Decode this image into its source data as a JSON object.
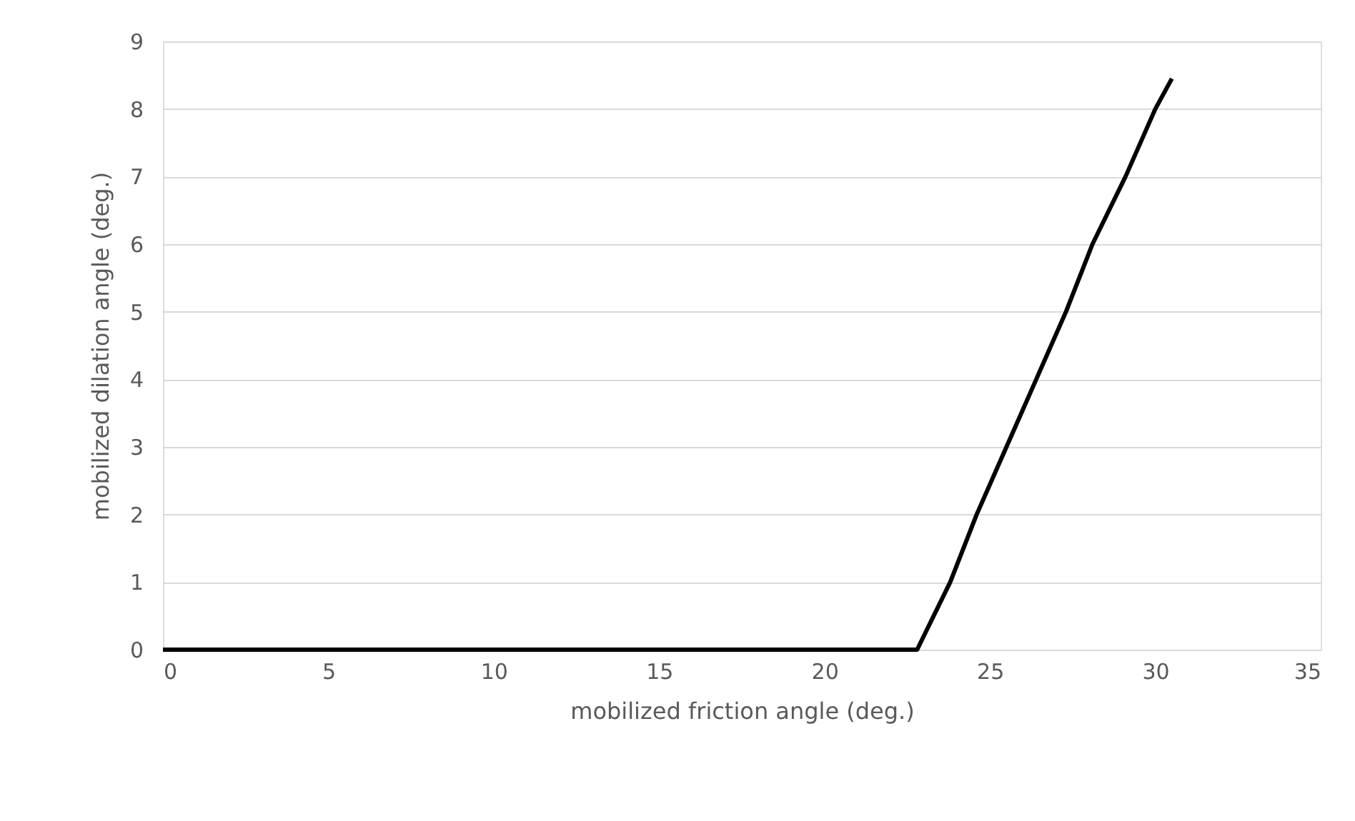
{
  "chart_data": {
    "type": "line",
    "xlabel": "mobilized friction angle (deg.)",
    "ylabel": "mobilized dilation angle (deg.)",
    "x": [
      0,
      22.8,
      23.8,
      24.6,
      25.5,
      26.4,
      27.3,
      28.1,
      29.1,
      30.0,
      30.5
    ],
    "series": [
      {
        "color": "#000000",
        "values": [
          0,
          0,
          1,
          2,
          3,
          4,
          5,
          6,
          7,
          8,
          8.45
        ]
      }
    ],
    "xlim": [
      0,
      35
    ],
    "xticks": [
      0,
      5,
      10,
      15,
      20,
      25,
      30,
      35
    ],
    "ylim": [
      0,
      9
    ],
    "yticks": [
      0,
      1,
      2,
      3,
      4,
      5,
      6,
      7,
      8,
      9
    ],
    "grid": "y",
    "marker": "none",
    "line_style": "solid"
  }
}
